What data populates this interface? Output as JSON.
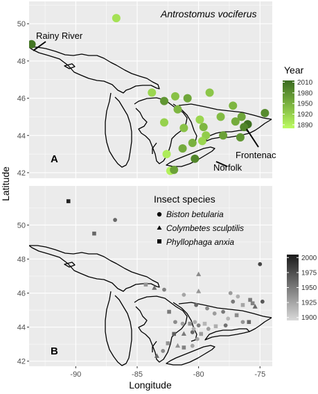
{
  "figure": {
    "x_axis_title": "Longitude",
    "y_axis_title": "Latitude",
    "background": "#ebebeb",
    "grid_color": "#ffffff"
  },
  "chart_data": [
    {
      "type": "scatter",
      "panel_label": "A",
      "title": "Antrostomus vociferus",
      "xlim": [
        -93.8,
        -74.0
      ],
      "ylim": [
        41.7,
        51.2
      ],
      "x_ticks": [
        -90,
        -85,
        -80,
        -75
      ],
      "y_ticks": [
        42,
        44,
        46,
        48,
        50
      ],
      "color_legend": {
        "title": "Year",
        "min": 1880,
        "max": 2015,
        "ticks": [
          2010,
          1980,
          1950,
          1920,
          1890
        ],
        "low_color": "#bdfc61",
        "high_color": "#3a6b1f"
      },
      "annotations": [
        {
          "text": "Rainy River",
          "x": -93.6,
          "y": 48.9
        },
        {
          "text": "Frontenac",
          "x": -76.5,
          "y": 44.5
        },
        {
          "text": "Norfolk",
          "x": -80.3,
          "y": 42.8
        }
      ],
      "points": [
        {
          "x": -93.6,
          "y": 48.9,
          "year": 2005
        },
        {
          "x": -86.7,
          "y": 50.3,
          "year": 1905
        },
        {
          "x": -83.8,
          "y": 46.3,
          "year": 1915
        },
        {
          "x": -82.8,
          "y": 45.85,
          "year": 1975
        },
        {
          "x": -81.9,
          "y": 46.1,
          "year": 1935
        },
        {
          "x": -80.9,
          "y": 46.0,
          "year": 1960
        },
        {
          "x": -79.1,
          "y": 46.3,
          "year": 1930
        },
        {
          "x": -81.7,
          "y": 45.4,
          "year": 1945
        },
        {
          "x": -79.9,
          "y": 44.85,
          "year": 1915
        },
        {
          "x": -77.2,
          "y": 45.6,
          "year": 1945
        },
        {
          "x": -76.5,
          "y": 45.0,
          "year": 1960
        },
        {
          "x": -74.6,
          "y": 45.2,
          "year": 1985
        },
        {
          "x": -76.0,
          "y": 44.6,
          "year": 2010
        },
        {
          "x": -76.3,
          "y": 44.45,
          "year": 1990
        },
        {
          "x": -77.0,
          "y": 44.75,
          "year": 1955
        },
        {
          "x": -78.2,
          "y": 45.0,
          "year": 1940
        },
        {
          "x": -82.8,
          "y": 44.7,
          "year": 1920
        },
        {
          "x": -81.2,
          "y": 44.4,
          "year": 1935
        },
        {
          "x": -79.6,
          "y": 44.45,
          "year": 1945
        },
        {
          "x": -78.0,
          "y": 44.0,
          "year": 1965
        },
        {
          "x": -79.4,
          "y": 44.0,
          "year": 1925
        },
        {
          "x": -79.7,
          "y": 43.7,
          "year": 1915
        },
        {
          "x": -76.6,
          "y": 43.9,
          "year": 1975
        },
        {
          "x": -80.5,
          "y": 43.6,
          "year": 1950
        },
        {
          "x": -81.3,
          "y": 43.3,
          "year": 1955
        },
        {
          "x": -82.6,
          "y": 43.0,
          "year": 1895
        },
        {
          "x": -82.3,
          "y": 42.1,
          "year": 1890
        },
        {
          "x": -82.0,
          "y": 42.15,
          "year": 1965
        },
        {
          "x": -80.3,
          "y": 42.75,
          "year": 1990
        }
      ]
    },
    {
      "type": "scatter",
      "panel_label": "B",
      "xlim": [
        -93.8,
        -74.0
      ],
      "ylim": [
        41.7,
        52.3
      ],
      "x_ticks": [
        -90,
        -85,
        -80,
        -75
      ],
      "y_ticks": [
        42,
        44,
        46,
        48,
        50
      ],
      "shape_legend": {
        "title": "Insect species",
        "items": [
          {
            "label": "Biston betularia",
            "shape": "circle"
          },
          {
            "label": "Colymbetes sculptilis",
            "shape": "triangle"
          },
          {
            "label": "Phyllophaga anxia",
            "shape": "square"
          }
        ]
      },
      "color_legend": {
        "min": 1895,
        "max": 2005,
        "ticks": [
          2000,
          1975,
          1950,
          1925,
          1900
        ],
        "low_color": "#d9d9d9",
        "high_color": "#1a1a1a"
      },
      "points": [
        {
          "x": -90.6,
          "y": 51.4,
          "species": "Phyllophaga anxia",
          "year": 2000
        },
        {
          "x": -86.8,
          "y": 50.3,
          "species": "Biston betularia",
          "year": 1960
        },
        {
          "x": -88.5,
          "y": 49.5,
          "species": "Phyllophaga anxia",
          "year": 1960
        },
        {
          "x": -75.0,
          "y": 47.7,
          "species": "Biston betularia",
          "year": 1980
        },
        {
          "x": -80.0,
          "y": 47.1,
          "species": "Colymbetes sculptilis",
          "year": 1940
        },
        {
          "x": -84.3,
          "y": 46.5,
          "species": "Phyllophaga anxia",
          "year": 1935
        },
        {
          "x": -83.6,
          "y": 46.3,
          "species": "Colymbetes sculptilis",
          "year": 1955
        },
        {
          "x": -82.8,
          "y": 46.2,
          "species": "Biston betularia",
          "year": 1945
        },
        {
          "x": -81.2,
          "y": 45.9,
          "species": "Biston betularia",
          "year": 1925
        },
        {
          "x": -80.0,
          "y": 46.1,
          "species": "Colymbetes sculptilis",
          "year": 1935
        },
        {
          "x": -77.4,
          "y": 46.0,
          "species": "Biston betularia",
          "year": 1930
        },
        {
          "x": -77.2,
          "y": 45.5,
          "species": "Biston betularia",
          "year": 1950
        },
        {
          "x": -76.8,
          "y": 45.8,
          "species": "Biston betularia",
          "year": 1920
        },
        {
          "x": -76.4,
          "y": 45.3,
          "species": "Phyllophaga anxia",
          "year": 1925
        },
        {
          "x": -75.8,
          "y": 45.6,
          "species": "Phyllophaga anxia",
          "year": 1950
        },
        {
          "x": -75.6,
          "y": 45.4,
          "species": "Phyllophaga anxia",
          "year": 1945
        },
        {
          "x": -75.4,
          "y": 45.2,
          "species": "Colymbetes sculptilis",
          "year": 1960
        },
        {
          "x": -74.8,
          "y": 45.5,
          "species": "Biston betularia",
          "year": 1970
        },
        {
          "x": -80.2,
          "y": 45.3,
          "species": "Biston betularia",
          "year": 1960
        },
        {
          "x": -79.3,
          "y": 45.1,
          "species": "Biston betularia",
          "year": 1940
        },
        {
          "x": -78.7,
          "y": 44.8,
          "species": "Biston betularia",
          "year": 1930
        },
        {
          "x": -78.0,
          "y": 44.9,
          "species": "Biston betularia",
          "year": 1950
        },
        {
          "x": -77.6,
          "y": 44.5,
          "species": "Biston betularia",
          "year": 1915
        },
        {
          "x": -76.9,
          "y": 44.7,
          "species": "Phyllophaga anxia",
          "year": 1940
        },
        {
          "x": -76.4,
          "y": 44.3,
          "species": "Biston betularia",
          "year": 1935
        },
        {
          "x": -75.9,
          "y": 44.3,
          "species": "Phyllophaga anxia",
          "year": 1960
        },
        {
          "x": -82.4,
          "y": 44.9,
          "species": "Phyllophaga anxia",
          "year": 1950
        },
        {
          "x": -81.9,
          "y": 44.3,
          "species": "Biston betularia",
          "year": 1940
        },
        {
          "x": -81.3,
          "y": 44.2,
          "species": "Biston betularia",
          "year": 1930
        },
        {
          "x": -80.7,
          "y": 44.2,
          "species": "Phyllophaga anxia",
          "year": 1935
        },
        {
          "x": -80.3,
          "y": 44.3,
          "species": "Biston betularia",
          "year": 1920
        },
        {
          "x": -80.0,
          "y": 44.1,
          "species": "Biston betularia",
          "year": 1945
        },
        {
          "x": -79.5,
          "y": 44.2,
          "species": "Phyllophaga anxia",
          "year": 1915
        },
        {
          "x": -79.2,
          "y": 43.9,
          "species": "Biston betularia",
          "year": 1930
        },
        {
          "x": -78.6,
          "y": 44.05,
          "species": "Phyllophaga anxia",
          "year": 1920
        },
        {
          "x": -77.8,
          "y": 44.1,
          "species": "Biston betularia",
          "year": 1955
        },
        {
          "x": -80.5,
          "y": 43.7,
          "species": "Biston betularia",
          "year": 1960
        },
        {
          "x": -81.2,
          "y": 43.6,
          "species": "Colymbetes sculptilis",
          "year": 1950
        },
        {
          "x": -79.8,
          "y": 43.6,
          "species": "Phyllophaga anxia",
          "year": 1930
        },
        {
          "x": -80.1,
          "y": 43.3,
          "species": "Biston betularia",
          "year": 1925
        },
        {
          "x": -82.0,
          "y": 43.6,
          "species": "Phyllophaga anxia",
          "year": 1965
        },
        {
          "x": -82.5,
          "y": 43.05,
          "species": "Phyllophaga anxia",
          "year": 1935
        },
        {
          "x": -83.4,
          "y": 42.3,
          "species": "Colymbetes sculptilis",
          "year": 1960
        },
        {
          "x": -82.9,
          "y": 42.6,
          "species": "Biston betularia",
          "year": 1940
        },
        {
          "x": -81.7,
          "y": 42.9,
          "species": "Colymbetes sculptilis",
          "year": 1935
        },
        {
          "x": -81.2,
          "y": 42.8,
          "species": "Phyllophaga anxia",
          "year": 1945
        },
        {
          "x": -80.5,
          "y": 42.9,
          "species": "Biston betularia",
          "year": 1925
        },
        {
          "x": -80.4,
          "y": 43.9,
          "species": "Biston betularia",
          "year": 1920
        }
      ]
    }
  ]
}
